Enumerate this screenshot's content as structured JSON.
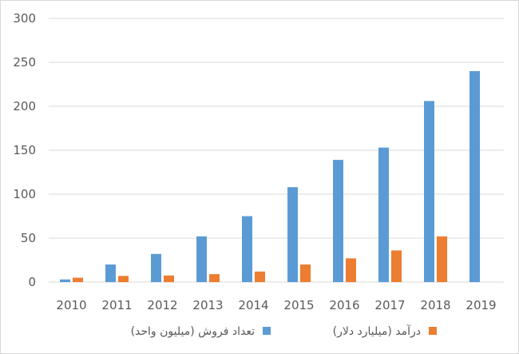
{
  "chart_data": {
    "type": "bar",
    "title": "",
    "xlabel": "",
    "ylabel": "",
    "categories": [
      "2010",
      "2011",
      "2012",
      "2013",
      "2014",
      "2015",
      "2016",
      "2017",
      "2018",
      "2019"
    ],
    "series": [
      {
        "name": "تعداد فروش (میلیون واحد)",
        "color": "#5b9bd5",
        "values": [
          3,
          20,
          32,
          52,
          75,
          108,
          139,
          153,
          206,
          240
        ]
      },
      {
        "name": "درآمد (میلیارد دلار)",
        "color": "#ed7d31",
        "values": [
          5,
          7,
          7.5,
          9,
          12,
          20,
          27,
          36,
          52,
          null
        ]
      }
    ],
    "ylim": [
      0,
      300
    ],
    "yticks": [
      "0",
      "50",
      "100",
      "150",
      "200",
      "250",
      "300"
    ],
    "grid": true,
    "legend_position": "bottom",
    "colors": {
      "grid": "#d9d9d9",
      "axis_text": "#595959"
    }
  }
}
